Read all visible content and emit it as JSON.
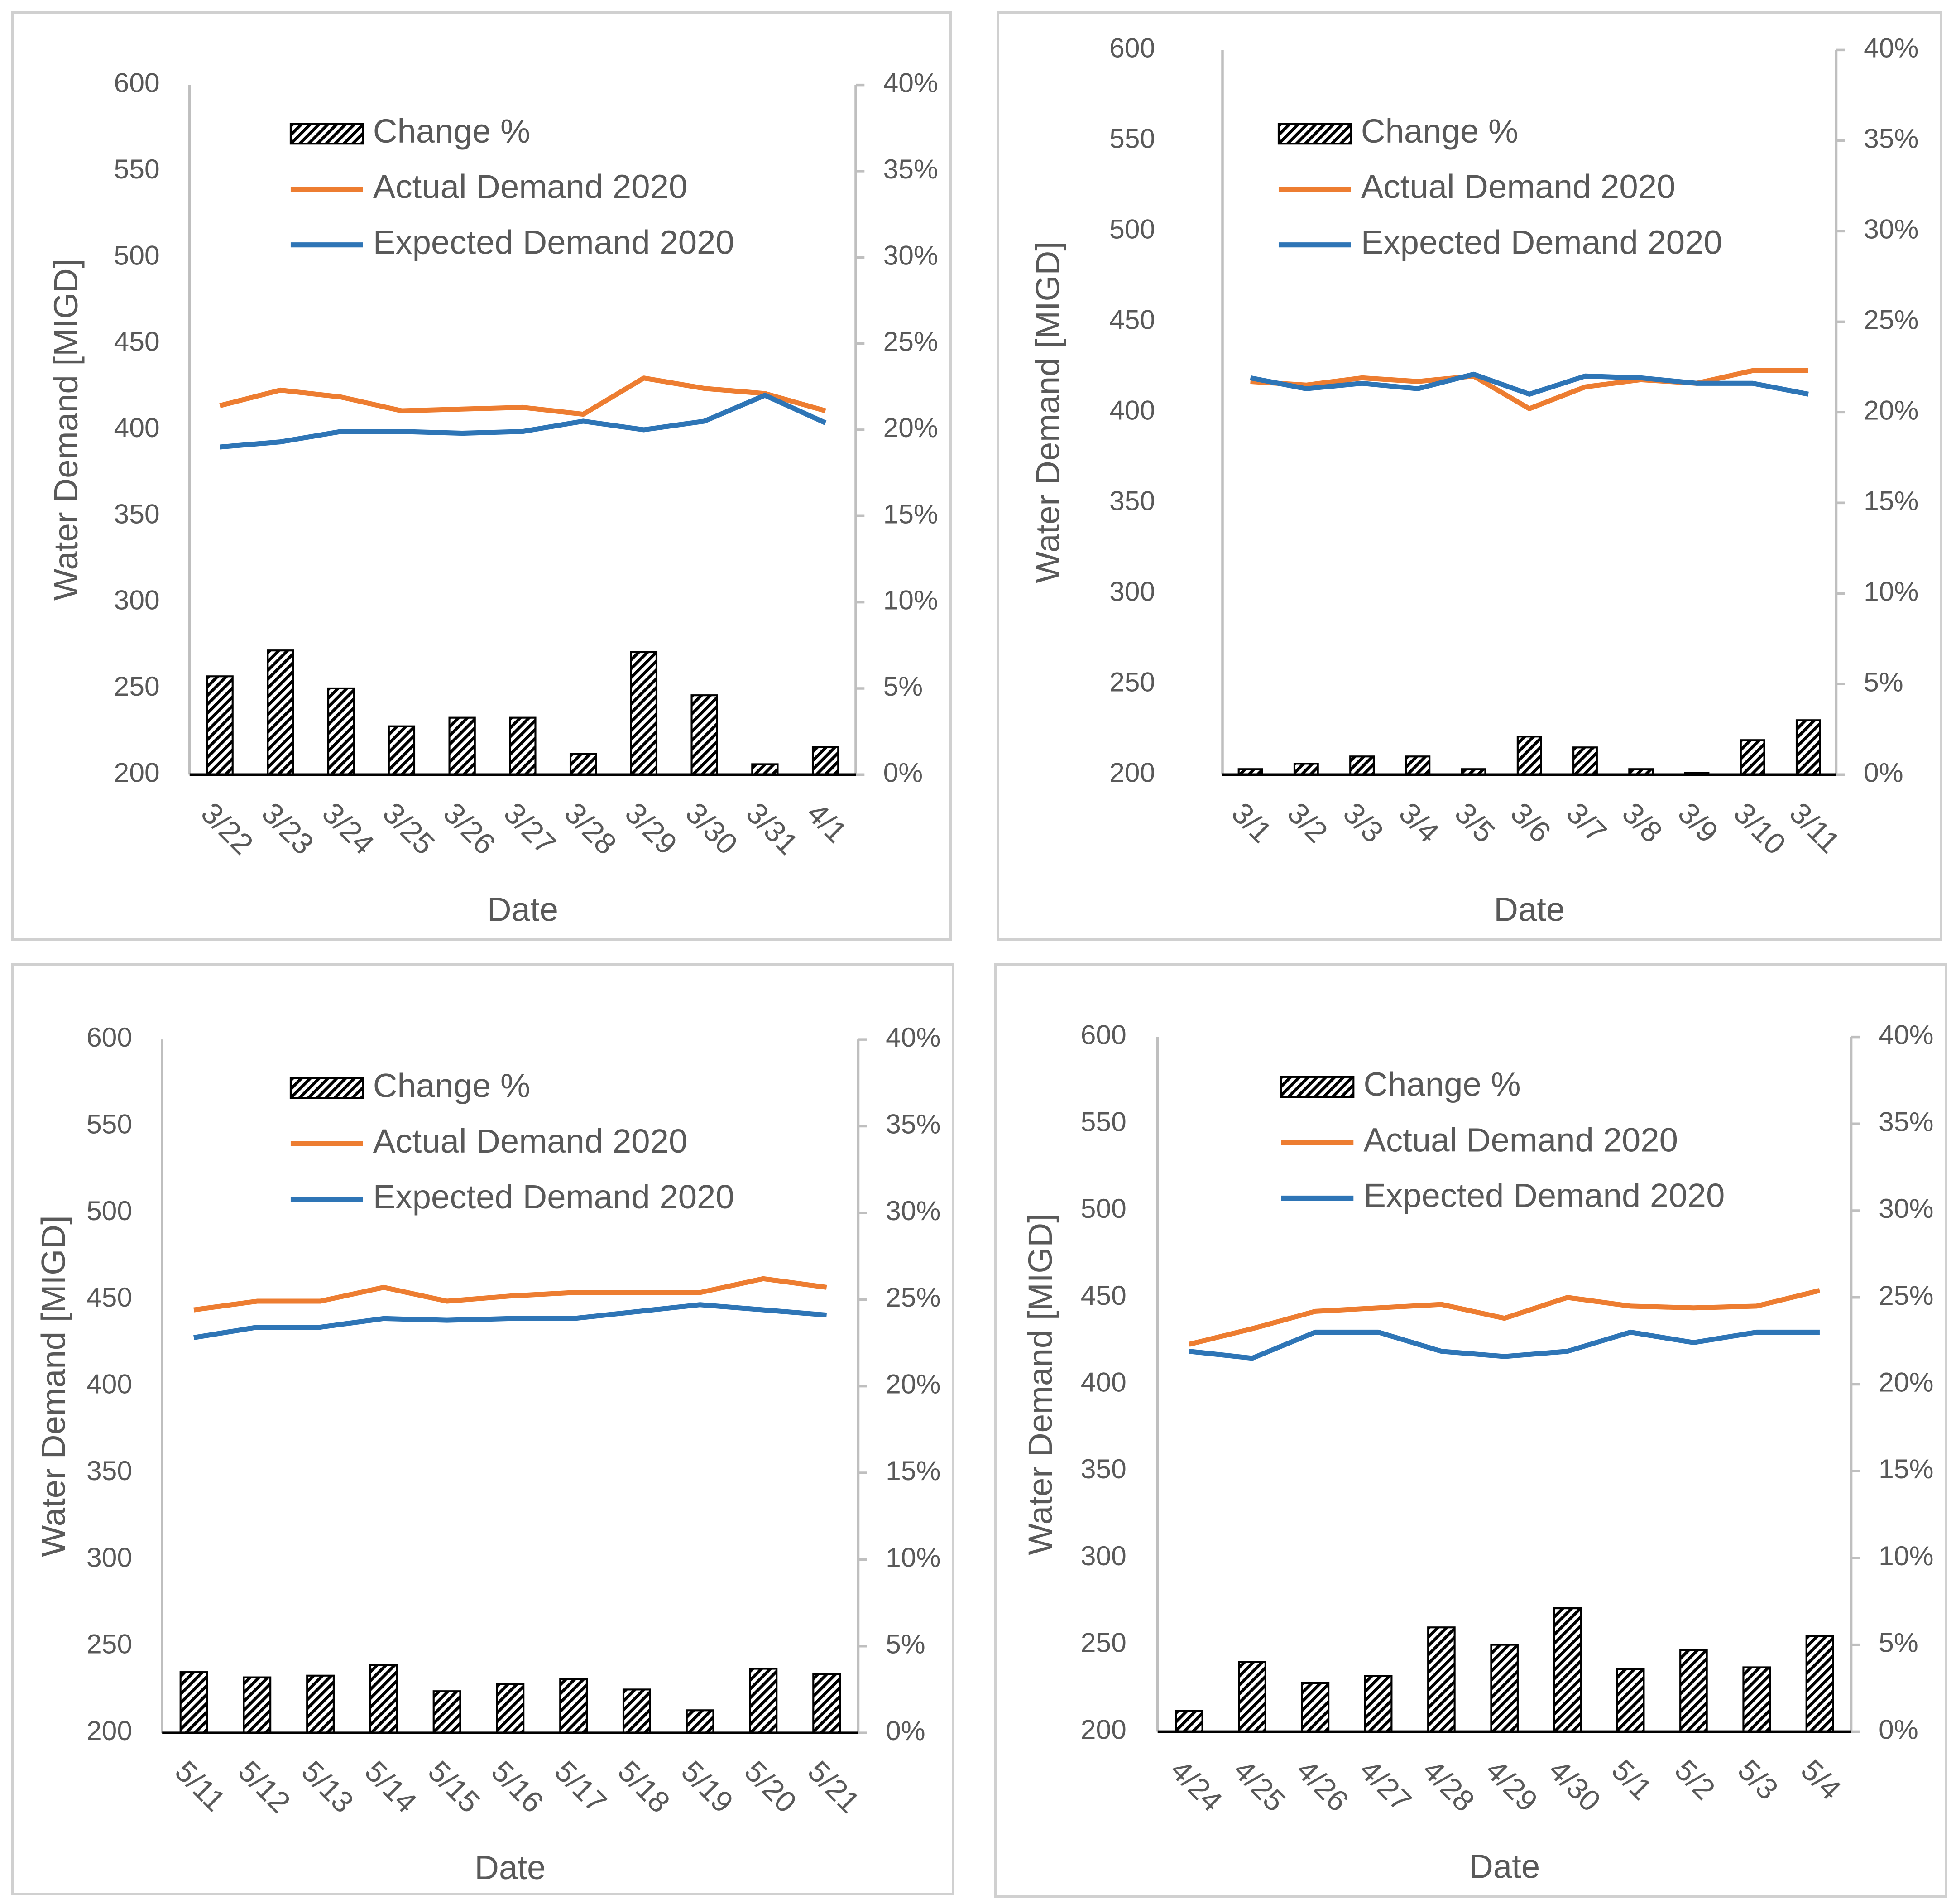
{
  "chart_data": [
    {
      "type": "combo",
      "y_label": "Water Demand [MIGD]",
      "x_label": "Date",
      "categories": [
        "3/22",
        "3/23",
        "3/24",
        "3/25",
        "3/26",
        "3/27",
        "3/28",
        "3/29",
        "3/30",
        "3/31",
        "4/1"
      ],
      "series": [
        {
          "name": "Change %",
          "type": "bar",
          "axis": "y2",
          "color": "#000000",
          "values": [
            5.7,
            7.2,
            5.0,
            2.8,
            3.3,
            3.3,
            1.2,
            7.1,
            4.6,
            0.6,
            1.6
          ]
        },
        {
          "name": "Actual Demand 2020",
          "type": "line",
          "color": "#ed7d31",
          "values": [
            414,
            423,
            419,
            411,
            412,
            413,
            409,
            430,
            424,
            421,
            411
          ]
        },
        {
          "name": "Expected Demand 2020",
          "type": "line",
          "color": "#2e75b6",
          "values": [
            390,
            393,
            399,
            399,
            398,
            399,
            405,
            400,
            405,
            420,
            404
          ]
        }
      ],
      "ylim": [
        200,
        600
      ],
      "yticks": [
        200,
        250,
        300,
        350,
        400,
        450,
        500,
        550,
        600
      ],
      "y2lim": [
        0,
        40
      ],
      "y2ticks": [
        {
          "value": 0,
          "label": "0%"
        },
        {
          "value": 5,
          "label": "5%"
        },
        {
          "value": 10,
          "label": "10%"
        },
        {
          "value": 15,
          "label": "15%"
        },
        {
          "value": 20,
          "label": "20%"
        },
        {
          "value": 25,
          "label": "25%"
        },
        {
          "value": 30,
          "label": "30%"
        },
        {
          "value": 35,
          "label": "35%"
        },
        {
          "value": 40,
          "label": "40%"
        }
      ]
    },
    {
      "type": "combo",
      "y_label": "Water Demand [MIGD]",
      "x_label": "Date",
      "categories": [
        "3/1",
        "3/2",
        "3/3",
        "3/4",
        "3/5",
        "3/6",
        "3/7",
        "3/8",
        "3/9",
        "3/10",
        "3/11"
      ],
      "series": [
        {
          "name": "Change %",
          "type": "bar",
          "axis": "y2",
          "color": "#000000",
          "values": [
            0.3,
            0.6,
            1.0,
            1.0,
            0.3,
            2.1,
            1.5,
            0.3,
            0.1,
            1.9,
            3.0
          ]
        },
        {
          "name": "Actual Demand 2020",
          "type": "line",
          "color": "#ed7d31",
          "values": [
            417,
            415,
            419,
            417,
            420,
            402,
            414,
            418,
            416,
            423,
            423
          ]
        },
        {
          "name": "Expected Demand 2020",
          "type": "line",
          "color": "#2e75b6",
          "values": [
            419,
            413,
            416,
            413,
            421,
            410,
            420,
            419,
            416,
            416,
            410
          ]
        }
      ],
      "ylim": [
        200,
        600
      ],
      "yticks": [
        200,
        250,
        300,
        350,
        400,
        450,
        500,
        550,
        600
      ],
      "y2lim": [
        0,
        40
      ],
      "y2ticks": [
        {
          "value": 0,
          "label": "0%"
        },
        {
          "value": 5,
          "label": "5%"
        },
        {
          "value": 10,
          "label": "10%"
        },
        {
          "value": 15,
          "label": "15%"
        },
        {
          "value": 20,
          "label": "20%"
        },
        {
          "value": 25,
          "label": "25%"
        },
        {
          "value": 30,
          "label": "30%"
        },
        {
          "value": 35,
          "label": "35%"
        },
        {
          "value": 40,
          "label": "40%"
        }
      ]
    },
    {
      "type": "combo",
      "y_label": "Water Demand [MIGD]",
      "x_label": "Date",
      "categories": [
        "5/11",
        "5/12",
        "5/13",
        "5/14",
        "5/15",
        "5/16",
        "5/17",
        "5/18",
        "5/19",
        "5/20",
        "5/21"
      ],
      "series": [
        {
          "name": "Change %",
          "type": "bar",
          "axis": "y2",
          "color": "#000000",
          "values": [
            3.5,
            3.2,
            3.3,
            3.9,
            2.4,
            2.8,
            3.1,
            2.5,
            1.3,
            3.7,
            3.4
          ]
        },
        {
          "name": "Actual Demand 2020",
          "type": "line",
          "color": "#ed7d31",
          "values": [
            444,
            449,
            449,
            457,
            449,
            452,
            454,
            454,
            454,
            462,
            457
          ]
        },
        {
          "name": "Expected Demand 2020",
          "type": "line",
          "color": "#2e75b6",
          "values": [
            428,
            434,
            434,
            439,
            438,
            439,
            439,
            443,
            447,
            444,
            441
          ]
        }
      ],
      "ylim": [
        200,
        600
      ],
      "yticks": [
        200,
        250,
        300,
        350,
        400,
        450,
        500,
        550,
        600
      ],
      "y2lim": [
        0,
        40
      ],
      "y2ticks": [
        {
          "value": 0,
          "label": "0%"
        },
        {
          "value": 5,
          "label": "5%"
        },
        {
          "value": 10,
          "label": "10%"
        },
        {
          "value": 15,
          "label": "15%"
        },
        {
          "value": 20,
          "label": "20%"
        },
        {
          "value": 25,
          "label": "25%"
        },
        {
          "value": 30,
          "label": "30%"
        },
        {
          "value": 35,
          "label": "35%"
        },
        {
          "value": 40,
          "label": "40%"
        }
      ]
    },
    {
      "type": "combo",
      "y_label": "Water Demand [MIGD]",
      "x_label": "Date",
      "categories": [
        "4/24",
        "4/25",
        "4/26",
        "4/27",
        "4/28",
        "4/29",
        "4/30",
        "5/1",
        "5/2",
        "5/3",
        "5/4"
      ],
      "series": [
        {
          "name": "Change %",
          "type": "bar",
          "axis": "y2",
          "color": "#000000",
          "values": [
            1.2,
            4.0,
            2.8,
            3.2,
            6.0,
            5.0,
            7.1,
            3.6,
            4.7,
            3.7,
            5.5
          ]
        },
        {
          "name": "Actual Demand 2020",
          "type": "line",
          "color": "#ed7d31",
          "values": [
            423,
            432,
            442,
            444,
            446,
            438,
            450,
            445,
            444,
            445,
            454
          ]
        },
        {
          "name": "Expected Demand 2020",
          "type": "line",
          "color": "#2e75b6",
          "values": [
            419,
            415,
            430,
            430,
            419,
            416,
            419,
            430,
            424,
            430,
            430
          ]
        }
      ],
      "ylim": [
        200,
        600
      ],
      "yticks": [
        200,
        250,
        300,
        350,
        400,
        450,
        500,
        550,
        600
      ],
      "y2lim": [
        0,
        40
      ],
      "y2ticks": [
        {
          "value": 0,
          "label": "0%"
        },
        {
          "value": 5,
          "label": "5%"
        },
        {
          "value": 10,
          "label": "10%"
        },
        {
          "value": 15,
          "label": "15%"
        },
        {
          "value": 20,
          "label": "20%"
        },
        {
          "value": 25,
          "label": "25%"
        },
        {
          "value": 30,
          "label": "30%"
        },
        {
          "value": 35,
          "label": "35%"
        },
        {
          "value": 40,
          "label": "40%"
        }
      ]
    }
  ]
}
